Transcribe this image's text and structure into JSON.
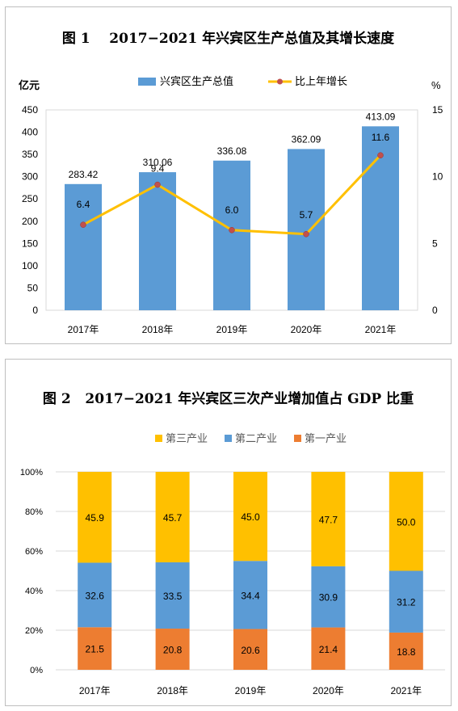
{
  "chart_data": [
    {
      "type": "bar",
      "title": "图 1    2017−2021 年兴宾区生产总值及其增长速度",
      "y_left_unit": "亿元",
      "y_right_unit": "%",
      "categories": [
        "2017年",
        "2018年",
        "2019年",
        "2020年",
        "2021年"
      ],
      "series": [
        {
          "name": "兴宾区生产总值",
          "type": "bar",
          "axis": "left",
          "color": "#5b9bd5",
          "values": [
            283.42,
            310.06,
            336.08,
            362.09,
            413.09
          ],
          "labels": [
            "283.42",
            "310.06",
            "336.08",
            "362.09",
            "413.09"
          ]
        },
        {
          "name": "比上年增长",
          "type": "line",
          "axis": "right",
          "color": "#ffc000",
          "marker_color": "#c0504d",
          "values": [
            6.4,
            9.4,
            6.0,
            5.7,
            11.6
          ],
          "labels": [
            "6.4",
            "9.4",
            "6.0",
            "5.7",
            "11.6"
          ]
        }
      ],
      "ylim_left": [
        0,
        450
      ],
      "yticks_left": [
        "0",
        "50",
        "100",
        "150",
        "200",
        "250",
        "300",
        "350",
        "400",
        "450"
      ],
      "ylim_right": [
        0,
        15
      ],
      "yticks_right": [
        "0",
        "5",
        "10",
        "15"
      ],
      "legend_position": "top"
    },
    {
      "type": "bar",
      "stacked": true,
      "title": "图 2   2017−2021 年兴宾区三次产业增加值占 GDP 比重",
      "categories": [
        "2017年",
        "2018年",
        "2019年",
        "2020年",
        "2021年"
      ],
      "series": [
        {
          "name": "第一产业",
          "color": "#ed7d31",
          "values": [
            21.5,
            20.8,
            20.6,
            21.4,
            18.8
          ],
          "labels": [
            "21.5",
            "20.8",
            "20.6",
            "21.4",
            "18.8"
          ]
        },
        {
          "name": "第二产业",
          "color": "#5b9bd5",
          "values": [
            32.6,
            33.5,
            34.4,
            30.9,
            31.2
          ],
          "labels": [
            "32.6",
            "33.5",
            "34.4",
            "30.9",
            "31.2"
          ]
        },
        {
          "name": "第三产业",
          "color": "#ffc000",
          "values": [
            45.9,
            45.7,
            45.0,
            47.7,
            50.0
          ],
          "labels": [
            "45.9",
            "45.7",
            "45.0",
            "47.7",
            "50.0"
          ]
        }
      ],
      "legend_order": [
        "第三产业",
        "第二产业",
        "第一产业"
      ],
      "ylim": [
        0,
        100
      ],
      "yticks": [
        "0%",
        "20%",
        "40%",
        "60%",
        "80%",
        "100%"
      ],
      "legend_position": "top"
    }
  ]
}
